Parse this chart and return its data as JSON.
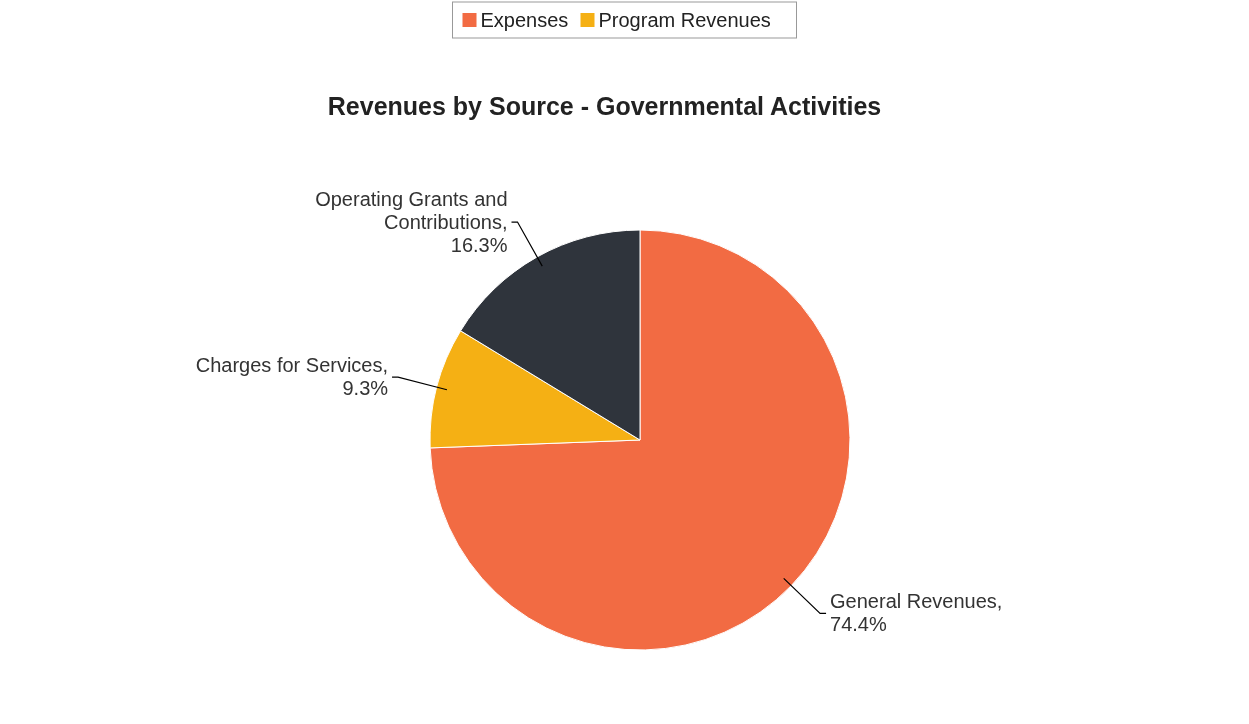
{
  "chart_data": {
    "type": "pie",
    "title": "Revenues by Source - Governmental Activities",
    "categories": [
      "General Revenues",
      "Charges for Services",
      "Operating Grants and Contributions"
    ],
    "values": [
      74.4,
      9.3,
      16.3
    ],
    "value_labels": [
      ", 74.4%",
      ", 9.3%",
      ", 16.3%"
    ],
    "colors": [
      "#f26b43",
      "#f5b014",
      "#2f343c"
    ],
    "annotations": [
      "Expenses",
      "Program Revenues"
    ]
  }
}
